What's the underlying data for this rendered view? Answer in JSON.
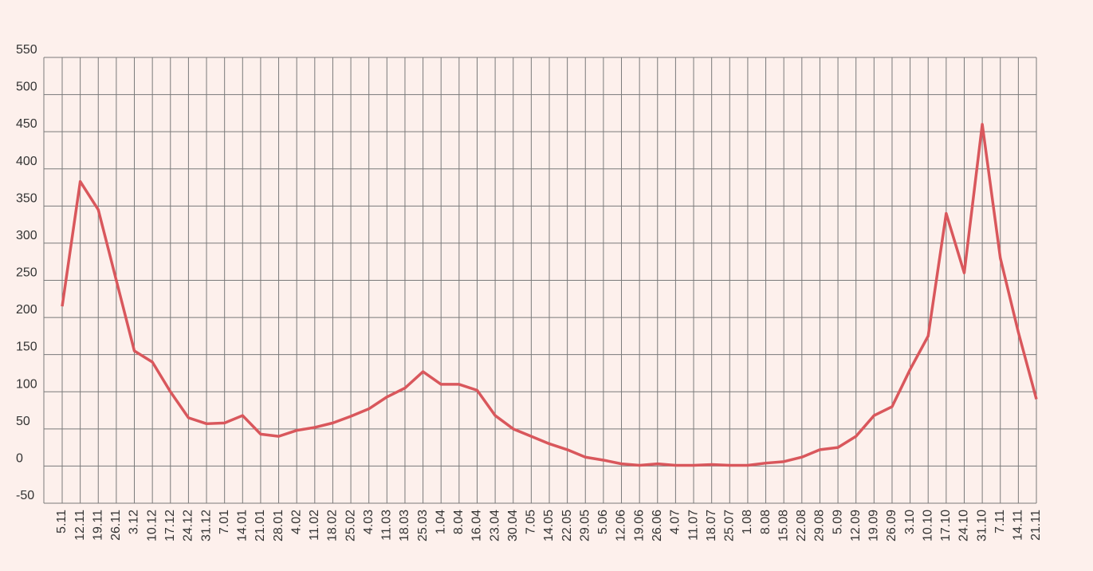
{
  "chart_data": {
    "type": "line",
    "categories": [
      "5.11",
      "12.11",
      "19.11",
      "26.11",
      "3.12",
      "10.12",
      "17.12",
      "24.12",
      "31.12",
      "7.01",
      "14.01",
      "21.01",
      "28.01",
      "4.02",
      "11.02",
      "18.02",
      "25.02",
      "4.03",
      "11.03",
      "18.03",
      "25.03",
      "1.04",
      "8.04",
      "16.04",
      "23.04",
      "30.04",
      "7.05",
      "14.05",
      "22.05",
      "29.05",
      "5.06",
      "12.06",
      "19.06",
      "26.06",
      "4.07",
      "11.07",
      "18.07",
      "25.07",
      "1.08",
      "8.08",
      "15.08",
      "22.08",
      "29.08",
      "5.09",
      "12.09",
      "19.09",
      "26.09",
      "3.10",
      "10.10",
      "17.10",
      "24.10",
      "31.10",
      "7.11",
      "14.11",
      "21.11"
    ],
    "series": [
      {
        "color": "#d9575c",
        "values": [
          215,
          383,
          345,
          250,
          155,
          140,
          100,
          65,
          57,
          58,
          68,
          43,
          40,
          48,
          52,
          58,
          67,
          77,
          93,
          105,
          127,
          110,
          110,
          102,
          68,
          50,
          40,
          30,
          22,
          12,
          8,
          3,
          1,
          3,
          1,
          1,
          2,
          1,
          1,
          4,
          6,
          12,
          22,
          25,
          40,
          68,
          80,
          130,
          175,
          340,
          260,
          460,
          280,
          180,
          90
        ]
      }
    ],
    "ylim": [
      -50,
      550
    ],
    "yticks": [
      -50,
      0,
      50,
      100,
      150,
      200,
      250,
      300,
      350,
      400,
      450,
      500,
      550
    ],
    "grid": true
  }
}
